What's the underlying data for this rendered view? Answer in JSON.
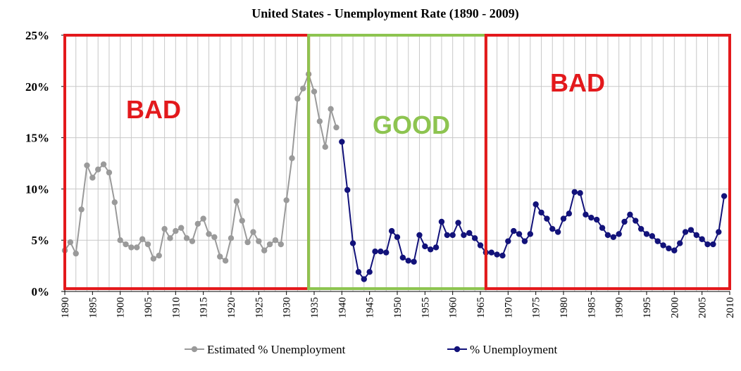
{
  "colors": {
    "estimated": "#9a9a9a",
    "actual": "#12127a",
    "bad": "#e3191c",
    "good": "#8dc450",
    "grid": "#c8c8c8"
  },
  "zones": [
    {
      "label": "BAD",
      "color": "#e3191c",
      "from": 1890,
      "to": 1934
    },
    {
      "label": "GOOD",
      "color": "#8dc450",
      "from": 1934,
      "to": 1966
    },
    {
      "label": "BAD",
      "color": "#e3191c",
      "from": 1966,
      "to": 2010
    }
  ],
  "chart_data": {
    "type": "line",
    "title": "United States - Unemployment Rate (1890 - 2009)",
    "xlim": [
      1890,
      2010
    ],
    "ylim": [
      0,
      25
    ],
    "y_tick_labels": [
      "0%",
      "5%",
      "10%",
      "15%",
      "20%",
      "25%"
    ],
    "x_tick_labels": [
      "1890",
      "1895",
      "1900",
      "1905",
      "1910",
      "1915",
      "1920",
      "1925",
      "1930",
      "1935",
      "1940",
      "1945",
      "1950",
      "1955",
      "1960",
      "1965",
      "1970",
      "1975",
      "1980",
      "1985",
      "1990",
      "1995",
      "2000",
      "2005",
      "2010"
    ],
    "grid": true,
    "legend": "bottom",
    "series": [
      {
        "name": "Estimated % Unemployment",
        "color": "#9a9a9a",
        "x": [
          1890,
          1891,
          1892,
          1893,
          1894,
          1895,
          1896,
          1897,
          1898,
          1899,
          1900,
          1901,
          1902,
          1903,
          1904,
          1905,
          1906,
          1907,
          1908,
          1909,
          1910,
          1911,
          1912,
          1913,
          1914,
          1915,
          1916,
          1917,
          1918,
          1919,
          1920,
          1921,
          1922,
          1923,
          1924,
          1925,
          1926,
          1927,
          1928,
          1929,
          1930,
          1931,
          1932,
          1933,
          1934,
          1935,
          1936,
          1937,
          1938,
          1939
        ],
        "y": [
          4.0,
          4.8,
          3.7,
          8.0,
          12.3,
          11.1,
          11.9,
          12.4,
          11.6,
          8.7,
          5.0,
          4.6,
          4.3,
          4.3,
          5.1,
          4.6,
          3.2,
          3.5,
          6.1,
          5.2,
          5.9,
          6.2,
          5.2,
          4.9,
          6.6,
          7.1,
          5.6,
          5.3,
          3.4,
          3.0,
          5.2,
          8.8,
          6.9,
          4.8,
          5.8,
          4.9,
          4.0,
          4.6,
          5.0,
          4.6,
          8.9,
          13.0,
          18.8,
          19.8,
          21.2,
          19.5,
          16.6,
          14.1,
          17.8,
          16.0
        ]
      },
      {
        "name": "% Unemployment",
        "color": "#12127a",
        "x": [
          1940,
          1941,
          1942,
          1943,
          1944,
          1945,
          1946,
          1947,
          1948,
          1949,
          1950,
          1951,
          1952,
          1953,
          1954,
          1955,
          1956,
          1957,
          1958,
          1959,
          1960,
          1961,
          1962,
          1963,
          1964,
          1965,
          1966,
          1967,
          1968,
          1969,
          1970,
          1971,
          1972,
          1973,
          1974,
          1975,
          1976,
          1977,
          1978,
          1979,
          1980,
          1981,
          1982,
          1983,
          1984,
          1985,
          1986,
          1987,
          1988,
          1989,
          1990,
          1991,
          1992,
          1993,
          1994,
          1995,
          1996,
          1997,
          1998,
          1999,
          2000,
          2001,
          2002,
          2003,
          2004,
          2005,
          2006,
          2007,
          2008,
          2009
        ],
        "y": [
          14.6,
          9.9,
          4.7,
          1.9,
          1.2,
          1.9,
          3.9,
          3.9,
          3.8,
          5.9,
          5.3,
          3.3,
          3.0,
          2.9,
          5.5,
          4.4,
          4.1,
          4.3,
          6.8,
          5.5,
          5.5,
          6.7,
          5.5,
          5.7,
          5.2,
          4.5,
          3.8,
          3.8,
          3.6,
          3.5,
          4.9,
          5.9,
          5.6,
          4.9,
          5.6,
          8.5,
          7.7,
          7.1,
          6.1,
          5.8,
          7.1,
          7.6,
          9.7,
          9.6,
          7.5,
          7.2,
          7.0,
          6.2,
          5.5,
          5.3,
          5.6,
          6.8,
          7.5,
          6.9,
          6.1,
          5.6,
          5.4,
          4.9,
          4.5,
          4.2,
          4.0,
          4.7,
          5.8,
          6.0,
          5.5,
          5.1,
          4.6,
          4.6,
          5.8,
          9.3
        ]
      }
    ]
  }
}
